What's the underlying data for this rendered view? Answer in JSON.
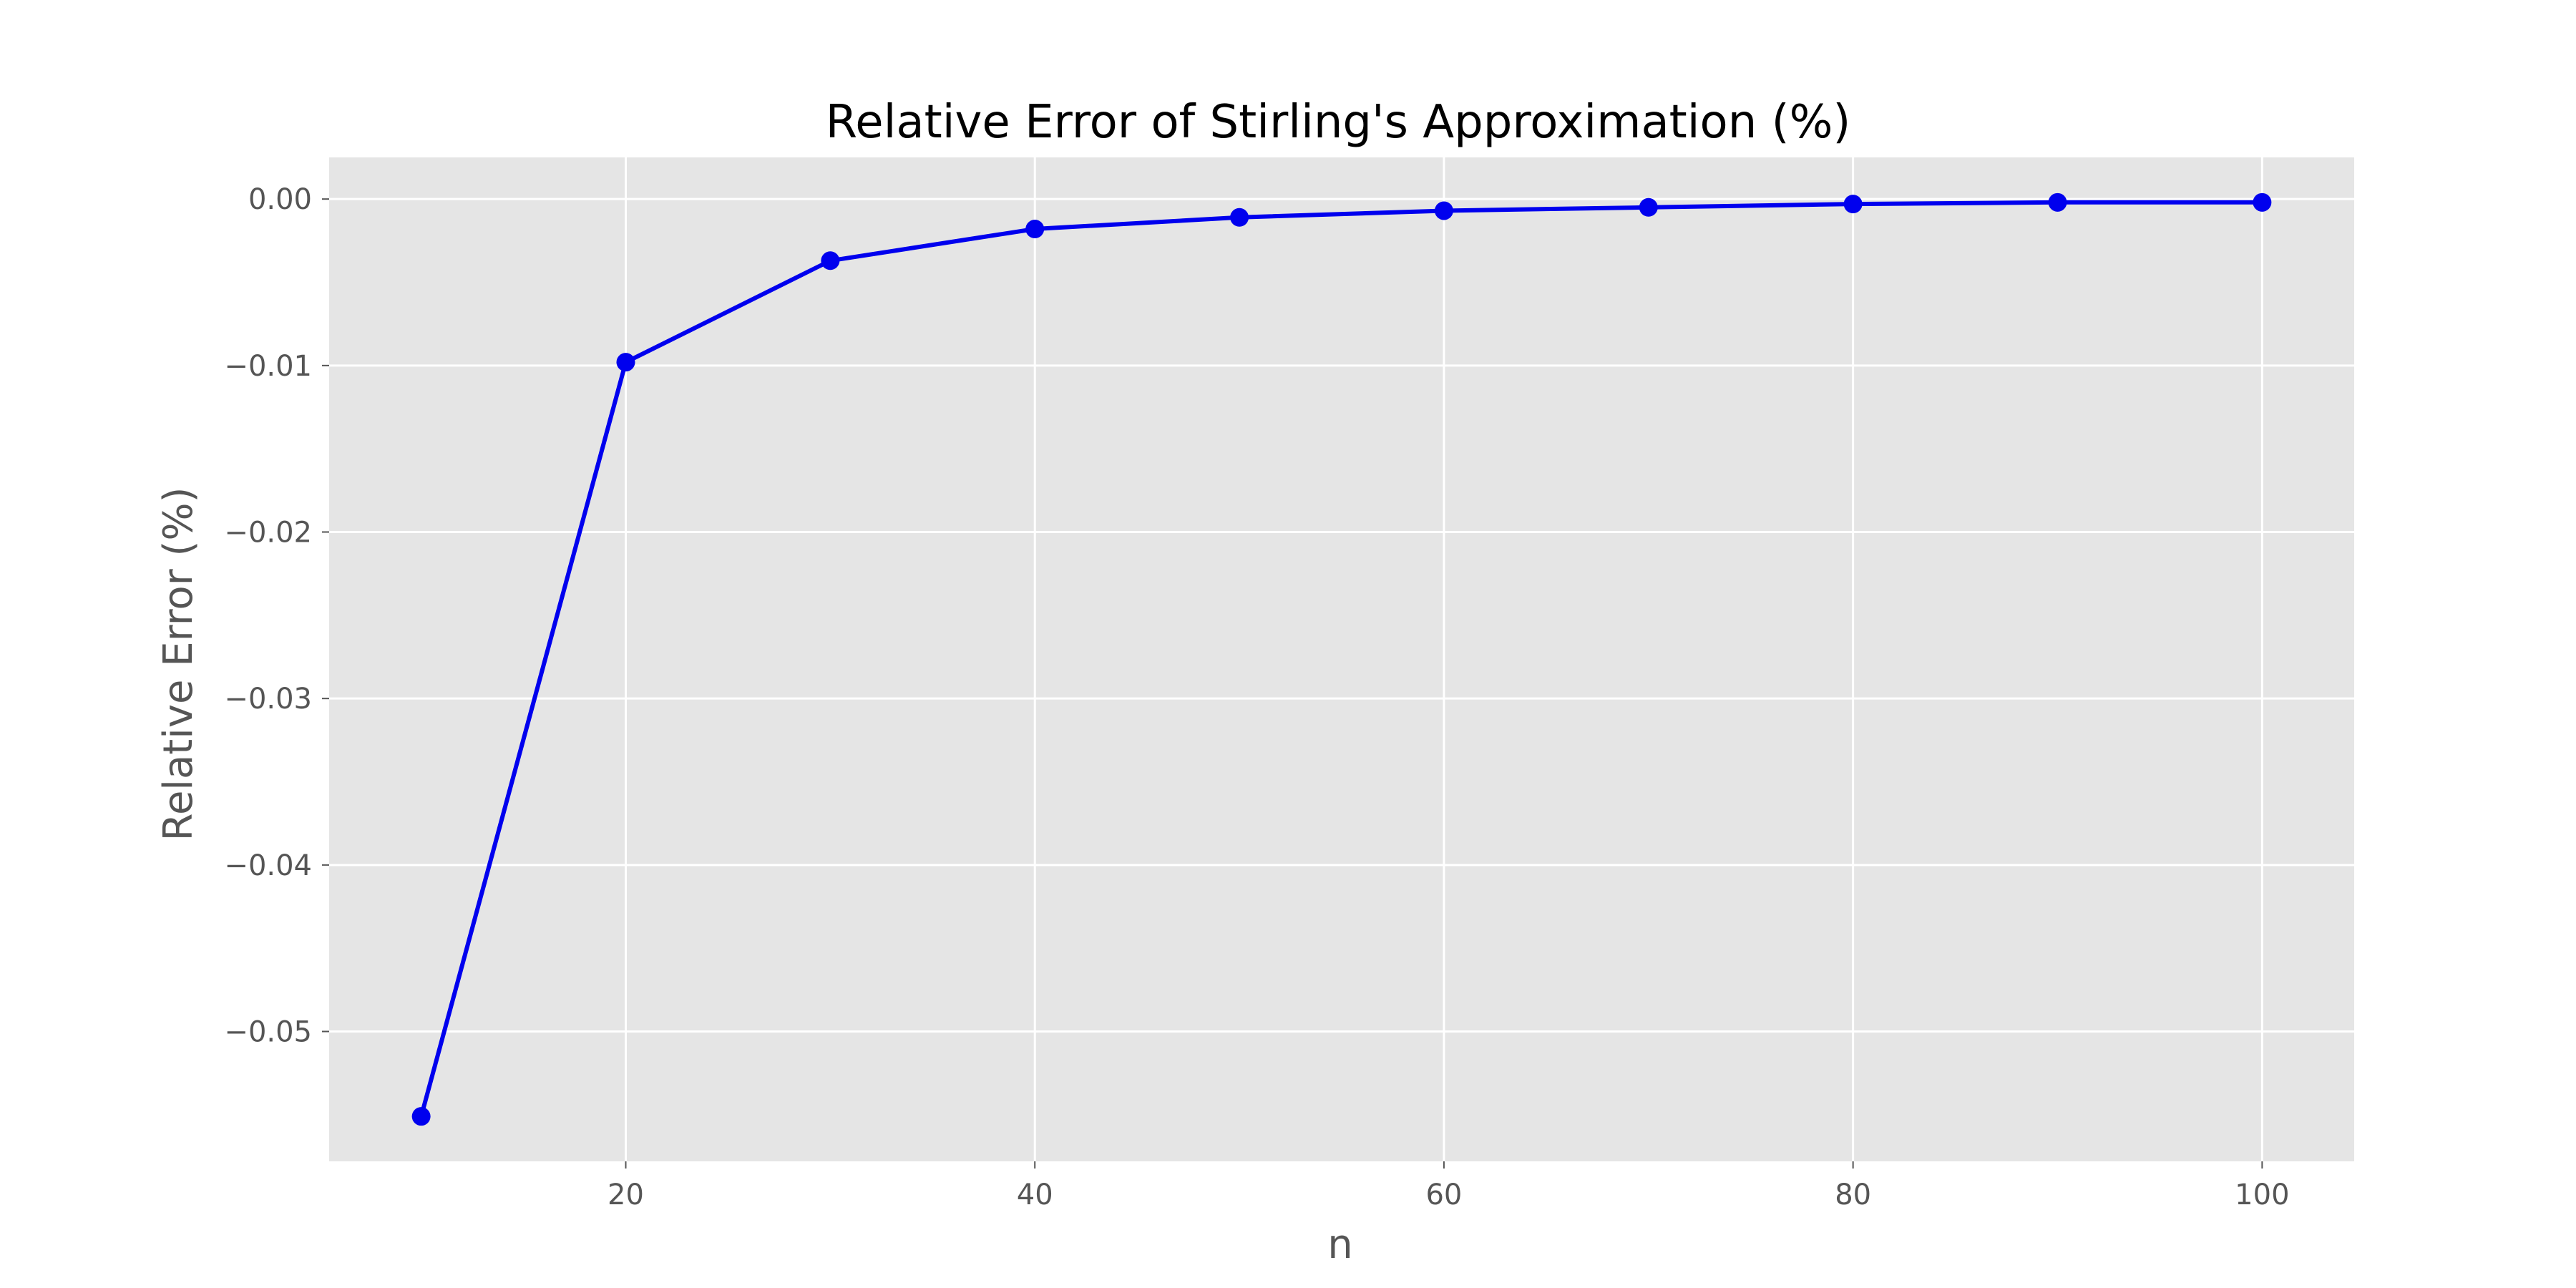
{
  "chart_data": {
    "type": "line",
    "title": "Relative Error of Stirling's Approximation (%)",
    "xlabel": "n",
    "ylabel": "Relative Error (%)",
    "x": [
      10,
      20,
      30,
      40,
      50,
      60,
      70,
      80,
      90,
      100
    ],
    "series": [
      {
        "values": [
          -0.0551,
          -0.0098,
          -0.0037,
          -0.0018,
          -0.0011,
          -0.0007,
          -0.0005,
          -0.0003,
          -0.0002,
          -0.0002
        ],
        "color": "#0000ee",
        "marker": "circle"
      }
    ],
    "xlim": [
      5.5,
      104.5
    ],
    "ylim": [
      -0.0578,
      0.0025
    ],
    "xticks": [
      20,
      40,
      60,
      80,
      100
    ],
    "xtick_labels": [
      "20",
      "40",
      "60",
      "80",
      "100"
    ],
    "yticks": [
      0.0,
      -0.01,
      -0.02,
      -0.03,
      -0.04,
      -0.05
    ],
    "ytick_labels": [
      "0.00",
      "−0.01",
      "−0.02",
      "−0.03",
      "−0.04",
      "−0.05"
    ],
    "grid": true,
    "legend": "none",
    "plot_background": "#e5e5e5",
    "grid_color": "#ffffff"
  }
}
